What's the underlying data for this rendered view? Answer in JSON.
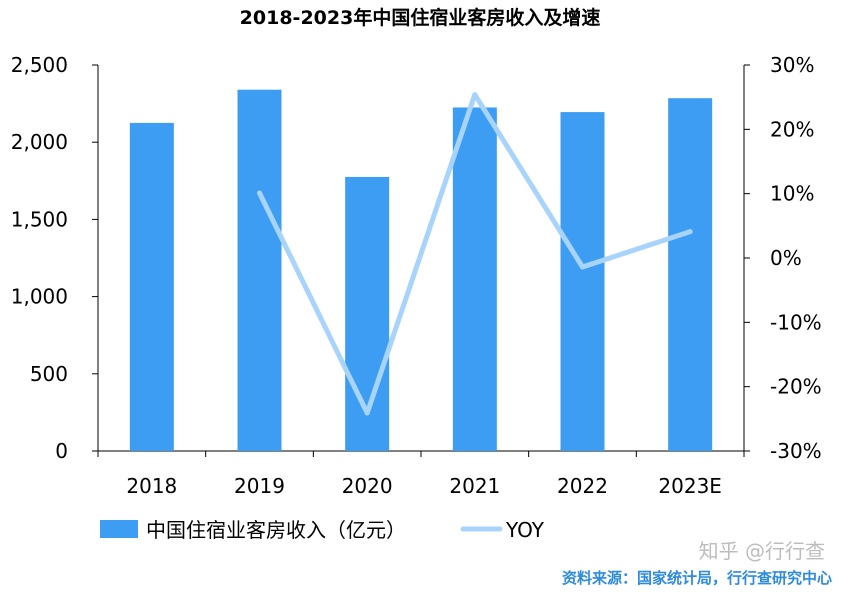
{
  "chart_data": {
    "type": "bar",
    "title": "2018-2023年中国住宿业客房收入及增速",
    "categories": [
      "2018",
      "2019",
      "2020",
      "2021",
      "2022",
      "2023E"
    ],
    "series": [
      {
        "name": "中国住宿业客房收入（亿元）",
        "type": "bar",
        "axis": "left",
        "values": [
          2125,
          2340,
          1775,
          2225,
          2195,
          2285
        ],
        "color": "#3d9df2"
      },
      {
        "name": "YOY",
        "type": "line",
        "axis": "right",
        "values": [
          null,
          10.1,
          -24.1,
          25.4,
          -1.4,
          4.1
        ],
        "color": "#a8d4fb"
      }
    ],
    "ylim_left": [
      0,
      2500
    ],
    "yticks_left": [
      "2,500",
      "2,000",
      "1,500",
      "1,000",
      "500",
      "0"
    ],
    "ylim_right": [
      -30,
      30
    ],
    "yticks_right": [
      "30%",
      "20%",
      "10%",
      "0%",
      "-10%",
      "-20%",
      "-30%"
    ],
    "legend_position": "bottom-left",
    "grid": false
  },
  "watermark": "知乎 @行行查",
  "source": "资料来源：国家统计局，行行查研究中心"
}
